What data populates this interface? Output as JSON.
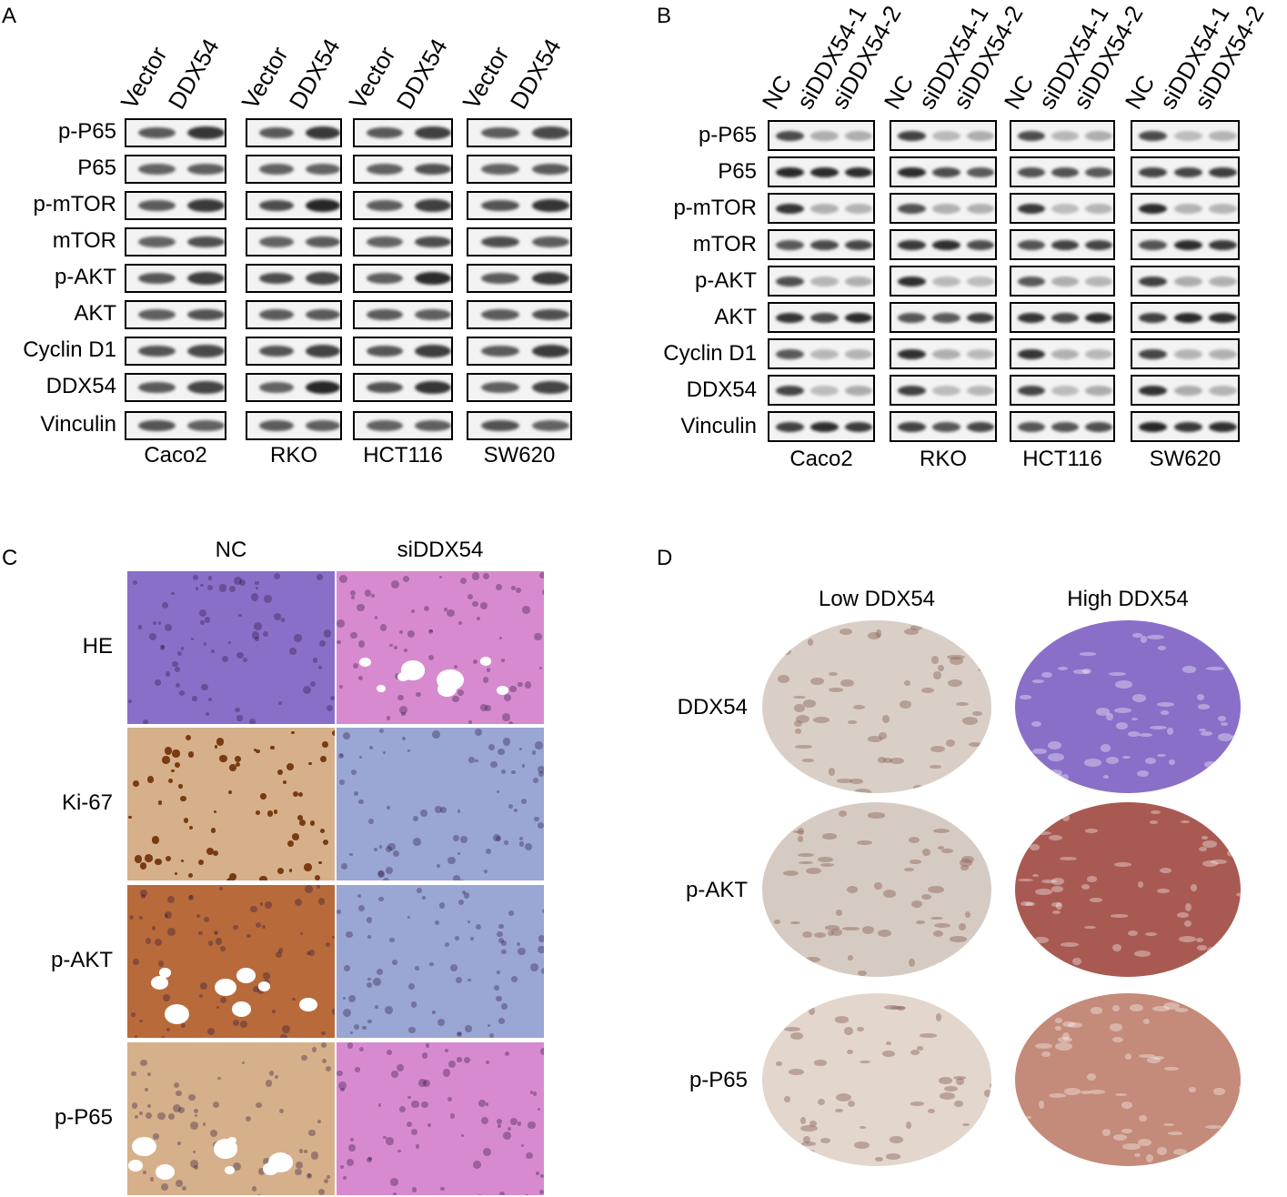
{
  "panels": {
    "a": "A",
    "b": "B",
    "c": "C",
    "d": "D"
  },
  "panel_a": {
    "lanes": [
      "Vector",
      "DDX54"
    ],
    "proteins": [
      "p-P65",
      "P65",
      "p-mTOR",
      "mTOR",
      "p-AKT",
      "AKT",
      "Cyclin D1",
      "DDX54",
      "Vinculin"
    ],
    "cell_lines": [
      "Caco2",
      "RKO",
      "HCT116",
      "SW620"
    ]
  },
  "panel_b": {
    "lanes": [
      "NC",
      "siDDX54-1",
      "siDDX54-2"
    ],
    "proteins": [
      "p-P65",
      "P65",
      "p-mTOR",
      "mTOR",
      "p-AKT",
      "AKT",
      "Cyclin D1",
      "DDX54",
      "Vinculin"
    ],
    "cell_lines": [
      "Caco2",
      "RKO",
      "HCT116",
      "SW620"
    ]
  },
  "panel_c": {
    "columns": [
      "NC",
      "siDDX54"
    ],
    "rows": [
      "HE",
      "Ki-67",
      "p-AKT",
      "p-P65"
    ]
  },
  "panel_d": {
    "columns": [
      "Low DDX54",
      "High DDX54"
    ],
    "rows": [
      "DDX54",
      "p-AKT",
      "p-P65"
    ]
  },
  "colors": {
    "he": "#8a6fc9",
    "he_pink": "#d88ad0",
    "dab": "#b86a3a",
    "dab_light": "#d6b08a",
    "hematoxylin": "#9aa6d4",
    "band": "#111111"
  }
}
